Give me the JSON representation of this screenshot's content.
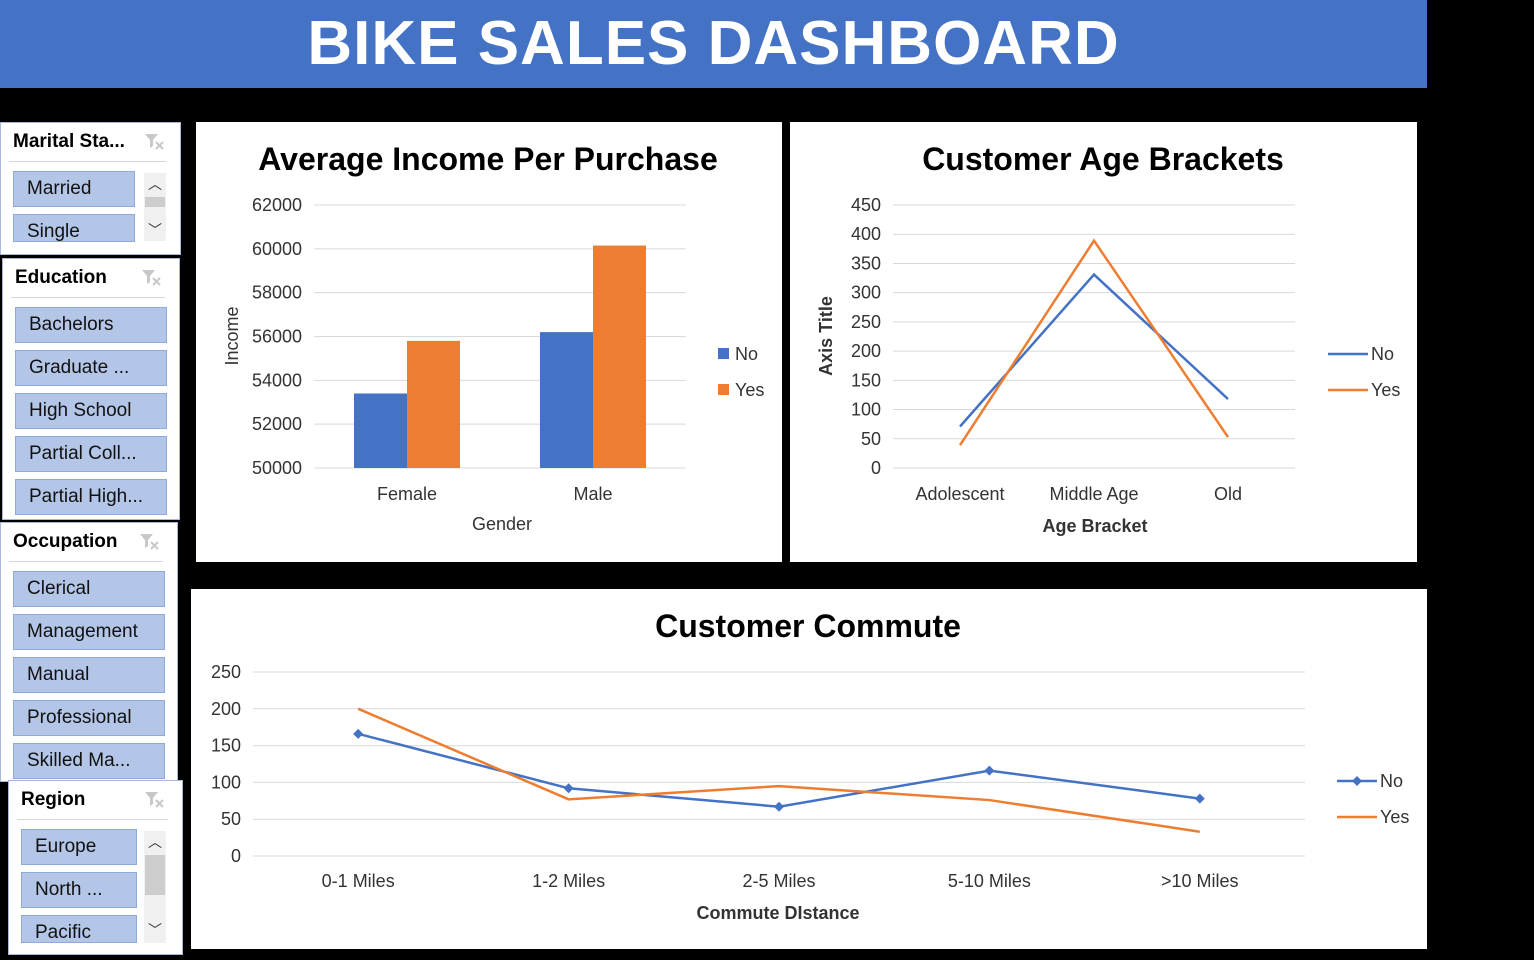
{
  "header": {
    "title": "BIKE SALES DASHBOARD"
  },
  "colors": {
    "banner": "#4472c4",
    "no": "#4472c4",
    "yes": "#ed7d31",
    "chip": "#b4c6e7"
  },
  "slicers": {
    "marital": {
      "title": "Marital Sta...",
      "items": [
        "Married",
        "Single"
      ]
    },
    "education": {
      "title": "Education",
      "items": [
        "Bachelors",
        "Graduate ...",
        "High School",
        "Partial Coll...",
        "Partial High..."
      ]
    },
    "occupation": {
      "title": "Occupation",
      "items": [
        "Clerical",
        "Management",
        "Manual",
        "Professional",
        "Skilled Ma..."
      ]
    },
    "region": {
      "title": "Region",
      "items": [
        "Europe",
        "North ...",
        "Pacific"
      ]
    }
  },
  "chart_data": [
    {
      "id": "income",
      "type": "bar",
      "title": "Average Income Per Purchase",
      "xlabel": "Gender",
      "ylabel": "Income",
      "categories": [
        "Female",
        "Male"
      ],
      "series": [
        {
          "name": "No",
          "values": [
            53400,
            56200
          ]
        },
        {
          "name": "Yes",
          "values": [
            55800,
            60150
          ]
        }
      ],
      "ylim": [
        50000,
        62000
      ],
      "yticks": [
        "50000",
        "52000",
        "54000",
        "56000",
        "58000",
        "60000",
        "62000"
      ],
      "grid": true,
      "legend": "right"
    },
    {
      "id": "age",
      "type": "line",
      "title": "Customer Age Brackets",
      "xlabel": "Age Bracket",
      "ylabel": "Axis Title",
      "categories": [
        "Adolescent",
        "Middle Age",
        "Old"
      ],
      "series": [
        {
          "name": "No",
          "values": [
            71,
            331,
            118
          ]
        },
        {
          "name": "Yes",
          "values": [
            39,
            389,
            53
          ]
        }
      ],
      "ylim": [
        0,
        450
      ],
      "yticks": [
        "0",
        "50",
        "100",
        "150",
        "200",
        "250",
        "300",
        "350",
        "400",
        "450"
      ],
      "grid": true,
      "legend": "right"
    },
    {
      "id": "commute",
      "type": "line",
      "title": "Customer Commute",
      "xlabel": "Commute DIstance",
      "ylabel": "",
      "categories": [
        "0-1 Miles",
        "1-2 Miles",
        "2-5 Miles",
        "5-10 Miles",
        ">10 Miles"
      ],
      "series": [
        {
          "name": "No",
          "values": [
            166,
            92,
            67,
            116,
            78
          ],
          "markers": true
        },
        {
          "name": "Yes",
          "values": [
            200,
            77,
            95,
            76,
            33
          ]
        }
      ],
      "ylim": [
        0,
        250
      ],
      "yticks": [
        "0",
        "50",
        "100",
        "150",
        "200",
        "250"
      ],
      "grid": true,
      "legend": "right"
    }
  ]
}
